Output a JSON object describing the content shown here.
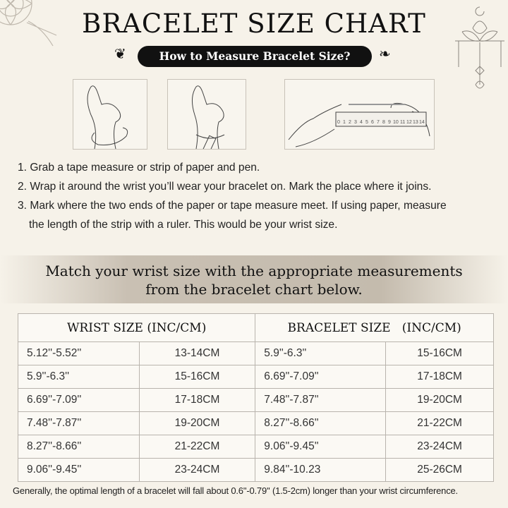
{
  "header": {
    "title": "BRACELET SIZE CHART",
    "subtitle": "How to Measure Bracelet Size?"
  },
  "ruler_labels": [
    "0",
    "1",
    "2",
    "3",
    "4",
    "5",
    "6",
    "7",
    "8",
    "9",
    "10",
    "11",
    "12",
    "13",
    "14"
  ],
  "steps": [
    "1. Grab a tape measure or strip of paper and pen.",
    "2. Wrap it around the wrist you’ll wear your bracelet on. Mark the place where it joins.",
    "3. Mark where the two ends of the paper or tape measure meet. If using paper, measure",
    "the length of the strip with a ruler. This would be your wrist size."
  ],
  "banner": {
    "line1": "Match your wrist size with the appropriate measurements",
    "line2": "from the bracelet chart below."
  },
  "table": {
    "headers": [
      "WRIST SIZE (INC/CM)",
      "BRACELET SIZE   (INC/CM)"
    ],
    "rows": [
      [
        "5.12''-5.52''",
        "13-14CM",
        "5.9''-6.3''",
        "15-16CM"
      ],
      [
        "5.9''-6.3''",
        "15-16CM",
        "6.69''-7.09''",
        "17-18CM"
      ],
      [
        "6.69''-7.09''",
        "17-18CM",
        "7.48''-7.87''",
        "19-20CM"
      ],
      [
        "7.48''-7.87''",
        "19-20CM",
        "8.27''-8.66''",
        "21-22CM"
      ],
      [
        "8.27''-8.66''",
        "21-22CM",
        "9.06''-9.45''",
        "23-24CM"
      ],
      [
        "9.06''-9.45''",
        "23-24CM",
        "9.84''-10.23",
        "25-26CM"
      ]
    ]
  },
  "note": "Generally, the optimal length of a bracelet will fall about 0.6''-0.79'' (1.5-2cm) longer than your wrist circumference."
}
